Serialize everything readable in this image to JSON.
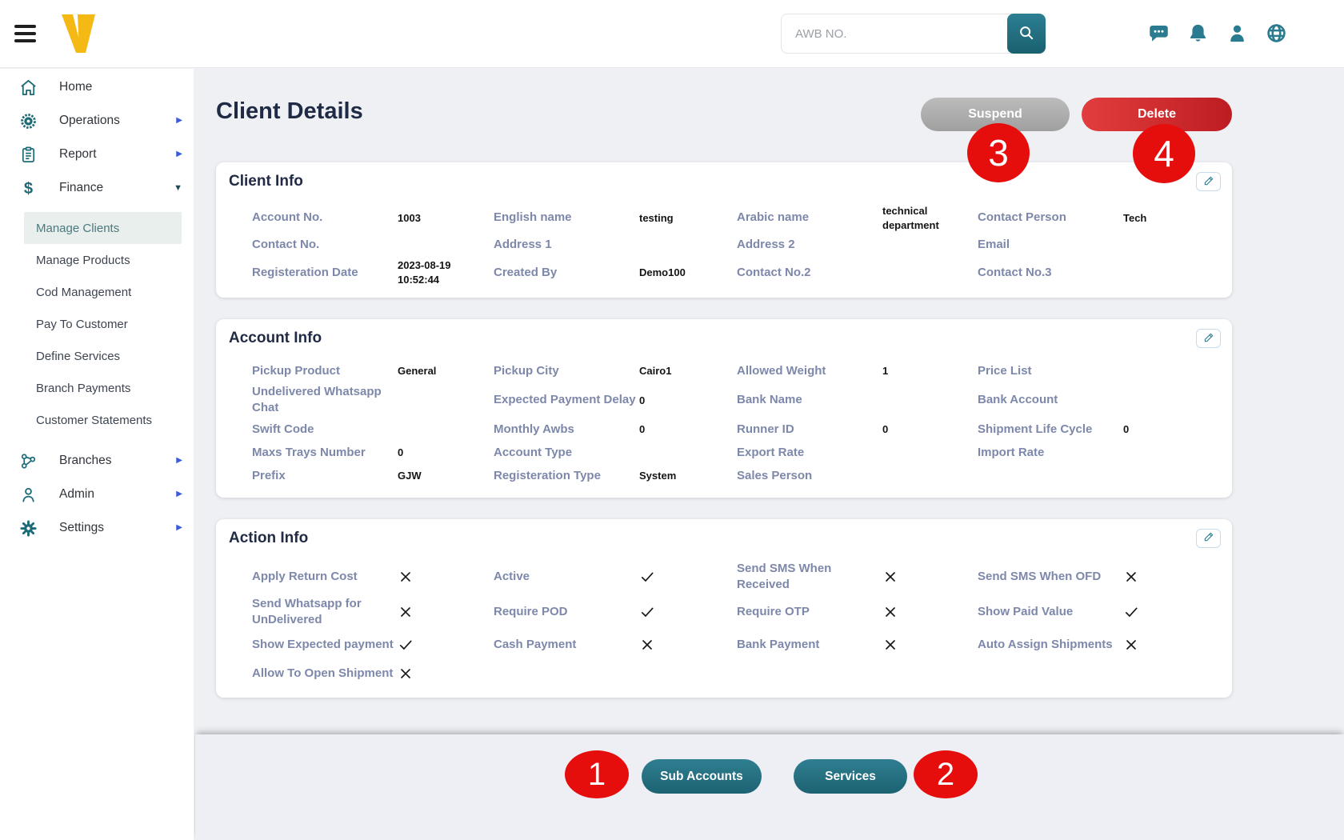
{
  "topbar": {
    "search": {
      "placeholder": "AWB NO."
    },
    "icons": [
      "chat",
      "bell",
      "user",
      "globe"
    ]
  },
  "sidebar": {
    "items": [
      {
        "type": "item",
        "label": "Home",
        "icon": "home"
      },
      {
        "type": "item",
        "label": "Operations",
        "icon": "operations",
        "arrow": "right"
      },
      {
        "type": "item",
        "label": "Report",
        "icon": "report",
        "arrow": "right"
      },
      {
        "type": "item",
        "label": "Finance",
        "icon": "finance",
        "arrow": "down"
      },
      {
        "type": "sub",
        "label": "Manage Clients",
        "active": true
      },
      {
        "type": "sub",
        "label": "Manage Products"
      },
      {
        "type": "sub",
        "label": "Cod Management"
      },
      {
        "type": "sub",
        "label": "Pay To Customer"
      },
      {
        "type": "sub",
        "label": "Define Services"
      },
      {
        "type": "sub",
        "label": "Branch Payments"
      },
      {
        "type": "sub",
        "label": "Customer Statements"
      },
      {
        "type": "item",
        "label": "Branches",
        "icon": "branches",
        "arrow": "right"
      },
      {
        "type": "item",
        "label": "Admin",
        "icon": "admin",
        "arrow": "right"
      },
      {
        "type": "item",
        "label": "Settings",
        "icon": "settings",
        "arrow": "right"
      }
    ]
  },
  "page": {
    "title": "Client Details",
    "suspend_label": "Suspend",
    "delete_label": "Delete",
    "step_badges": {
      "one": "1",
      "two": "2",
      "three": "3",
      "four": "4"
    }
  },
  "client_info": {
    "title": "Client Info",
    "rows": [
      [
        {
          "label": "Account No.",
          "value": "1003"
        },
        {
          "label": "English name",
          "value": "testing"
        },
        {
          "label": "Arabic name",
          "value": "technical department"
        },
        {
          "label": "Contact Person",
          "value": "Tech"
        }
      ],
      [
        {
          "label": "Contact No.",
          "value": ""
        },
        {
          "label": "Address 1",
          "value": ""
        },
        {
          "label": "Address 2",
          "value": ""
        },
        {
          "label": "Email",
          "value": ""
        }
      ],
      [
        {
          "label": "Registeration Date",
          "value": "2023-08-19 10:52:44"
        },
        {
          "label": "Created By",
          "value": "Demo100"
        },
        {
          "label": "Contact No.2",
          "value": ""
        },
        {
          "label": "Contact No.3",
          "value": ""
        }
      ]
    ]
  },
  "account_info": {
    "title": "Account Info",
    "rows": [
      [
        {
          "label": "Pickup Product",
          "value": "General"
        },
        {
          "label": "Pickup City",
          "value": "Cairo1"
        },
        {
          "label": "Allowed Weight",
          "value": "1"
        },
        {
          "label": "Price List",
          "value": ""
        }
      ],
      [
        {
          "label": "Undelivered Whatsapp Chat",
          "value": ""
        },
        {
          "label": "Expected Payment Delay",
          "value": "0"
        },
        {
          "label": "Bank Name",
          "value": ""
        },
        {
          "label": "Bank Account",
          "value": ""
        }
      ],
      [
        {
          "label": "Swift Code",
          "value": ""
        },
        {
          "label": "Monthly Awbs",
          "value": "0"
        },
        {
          "label": "Runner ID",
          "value": "0"
        },
        {
          "label": "Shipment Life Cycle",
          "value": "0"
        }
      ],
      [
        {
          "label": "Maxs Trays Number",
          "value": "0"
        },
        {
          "label": "Account Type",
          "value": ""
        },
        {
          "label": "Export Rate",
          "value": ""
        },
        {
          "label": "Import Rate",
          "value": ""
        }
      ],
      [
        {
          "label": "Prefix",
          "value": "GJW"
        },
        {
          "label": "Registeration Type",
          "value": "System"
        },
        {
          "label": "Sales Person",
          "value": ""
        }
      ]
    ]
  },
  "action_info": {
    "title": "Action Info",
    "rows": [
      [
        {
          "label": "Apply Return Cost",
          "checked": false
        },
        {
          "label": "Active",
          "checked": true
        },
        {
          "label": "Send SMS When Received",
          "checked": false
        },
        {
          "label": "Send SMS When OFD",
          "checked": false
        }
      ],
      [
        {
          "label": "Send Whatsapp for UnDelivered",
          "checked": false
        },
        {
          "label": "Require POD",
          "checked": true
        },
        {
          "label": "Require OTP",
          "checked": false
        },
        {
          "label": "Show Paid Value",
          "checked": true
        }
      ],
      [
        {
          "label": "Show Expected payment",
          "checked": true
        },
        {
          "label": "Cash Payment",
          "checked": false
        },
        {
          "label": "Bank Payment",
          "checked": false
        },
        {
          "label": "Auto Assign Shipments",
          "checked": false
        }
      ],
      [
        {
          "label": "Allow To Open Shipment",
          "checked": false
        }
      ]
    ]
  },
  "footer": {
    "sub_accounts_label": "Sub Accounts",
    "services_label": "Services"
  },
  "colors": {
    "primary_teal": "#1c6b77",
    "topbar_icon_teal": "#2a7b8f",
    "brand_yellow": "#f5b915",
    "accent_red": "#e60d0d",
    "delete_red": "#c6201f",
    "suspend_gray": "#a7a7a7",
    "label_blue_gray": "#7d88aa",
    "title_navy": "#1f2a44",
    "active_item_bg": "#e9efec"
  }
}
